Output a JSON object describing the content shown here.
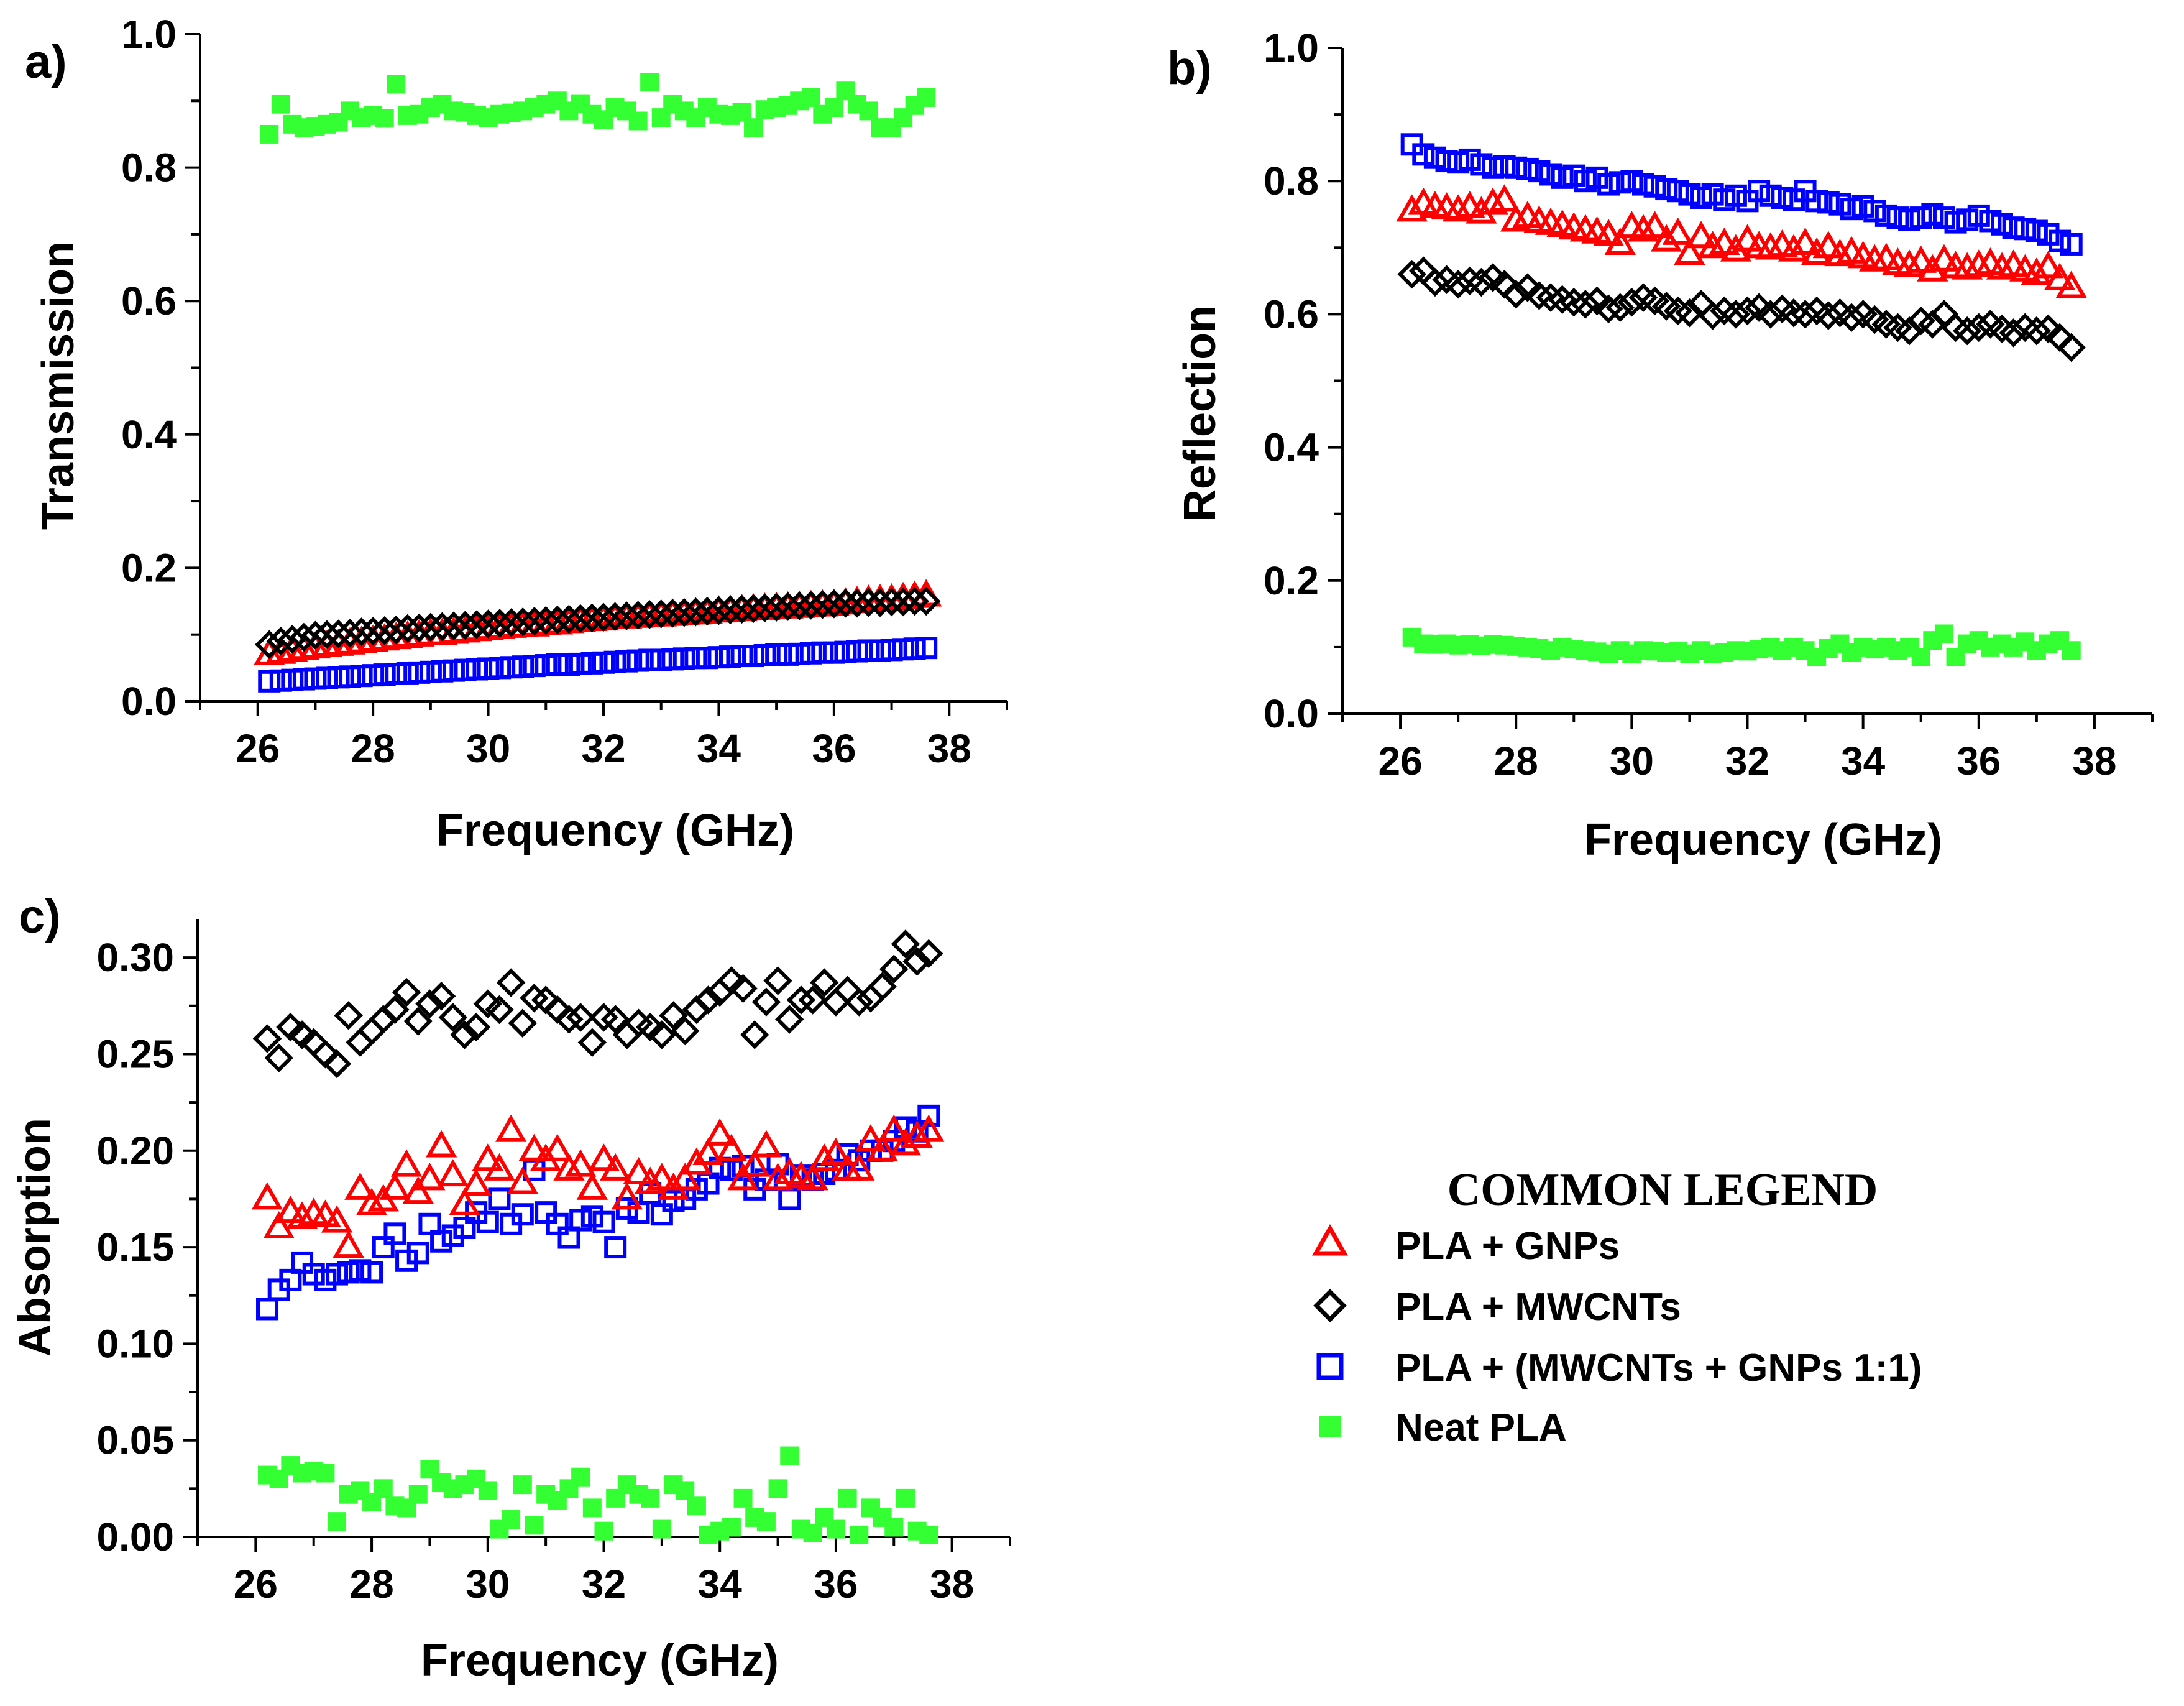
{
  "legend": {
    "title": "COMMON LEGEND",
    "entries": [
      {
        "name": "PLA + GNPs",
        "marker": "triangle-open",
        "color": "#ff0000"
      },
      {
        "name": "PLA + MWCNTs",
        "marker": "diamond-open",
        "color": "#000000"
      },
      {
        "name": "PLA + (MWCNTs + GNPs 1:1)",
        "marker": "square-open",
        "color": "#0000ff"
      },
      {
        "name": "Neat PLA",
        "marker": "square-filled",
        "color": "#33ff33"
      }
    ]
  },
  "chart_data": [
    {
      "type": "scatter",
      "panel_label": "a)",
      "title": "",
      "xlabel": "Frequency (GHz)",
      "ylabel": "Transmission",
      "xlim": [
        25,
        39
      ],
      "ylim": [
        0,
        1.0
      ],
      "xticks": [
        "26",
        "28",
        "30",
        "32",
        "34",
        "36",
        "38"
      ],
      "yticks": [
        "0.0",
        "0.2",
        "0.4",
        "0.6",
        "0.8",
        "1.0"
      ],
      "x": [
        26.2,
        26.4,
        26.6,
        26.8,
        27.0,
        27.2,
        27.4,
        27.6,
        27.8,
        28.0,
        28.2,
        28.4,
        28.6,
        28.8,
        29.0,
        29.2,
        29.4,
        29.6,
        29.8,
        30.0,
        30.2,
        30.4,
        30.6,
        30.8,
        31.0,
        31.2,
        31.4,
        31.6,
        31.8,
        32.0,
        32.2,
        32.4,
        32.6,
        32.8,
        33.0,
        33.2,
        33.4,
        33.6,
        33.8,
        34.0,
        34.2,
        34.4,
        34.6,
        34.8,
        35.0,
        35.2,
        35.4,
        35.6,
        35.8,
        36.0,
        36.2,
        36.4,
        36.6,
        36.8,
        37.0,
        37.2,
        37.4,
        37.6
      ],
      "series": [
        {
          "name": "PLA + GNPs",
          "values": [
            0.07,
            0.072,
            0.075,
            0.078,
            0.08,
            0.082,
            0.084,
            0.086,
            0.088,
            0.09,
            0.092,
            0.094,
            0.096,
            0.098,
            0.1,
            0.1,
            0.102,
            0.104,
            0.106,
            0.108,
            0.11,
            0.111,
            0.112,
            0.113,
            0.115,
            0.116,
            0.118,
            0.12,
            0.121,
            0.122,
            0.124,
            0.125,
            0.126,
            0.127,
            0.128,
            0.129,
            0.13,
            0.131,
            0.132,
            0.134,
            0.135,
            0.136,
            0.137,
            0.138,
            0.139,
            0.14,
            0.141,
            0.142,
            0.143,
            0.144,
            0.146,
            0.148,
            0.15,
            0.151,
            0.152,
            0.154,
            0.156,
            0.158
          ]
        },
        {
          "name": "PLA + MWCNTs",
          "values": [
            0.085,
            0.09,
            0.093,
            0.096,
            0.099,
            0.1,
            0.101,
            0.102,
            0.104,
            0.105,
            0.106,
            0.107,
            0.109,
            0.11,
            0.111,
            0.112,
            0.113,
            0.114,
            0.115,
            0.116,
            0.117,
            0.118,
            0.119,
            0.12,
            0.121,
            0.122,
            0.123,
            0.124,
            0.125,
            0.126,
            0.127,
            0.128,
            0.129,
            0.13,
            0.131,
            0.132,
            0.133,
            0.134,
            0.135,
            0.136,
            0.137,
            0.138,
            0.139,
            0.14,
            0.141,
            0.142,
            0.143,
            0.144,
            0.145,
            0.146,
            0.147,
            0.147,
            0.148,
            0.148,
            0.149,
            0.149,
            0.15,
            0.15
          ]
        },
        {
          "name": "PLA + (MWCNTs + GNPs 1:1)",
          "values": [
            0.03,
            0.031,
            0.032,
            0.033,
            0.034,
            0.035,
            0.036,
            0.037,
            0.038,
            0.039,
            0.04,
            0.041,
            0.042,
            0.043,
            0.044,
            0.045,
            0.046,
            0.047,
            0.048,
            0.049,
            0.05,
            0.051,
            0.052,
            0.053,
            0.054,
            0.055,
            0.055,
            0.056,
            0.057,
            0.058,
            0.059,
            0.06,
            0.061,
            0.062,
            0.062,
            0.063,
            0.064,
            0.065,
            0.065,
            0.066,
            0.067,
            0.068,
            0.068,
            0.069,
            0.07,
            0.07,
            0.071,
            0.072,
            0.073,
            0.073,
            0.074,
            0.075,
            0.076,
            0.076,
            0.077,
            0.078,
            0.079,
            0.08
          ]
        },
        {
          "name": "Neat PLA",
          "values": [
            0.85,
            0.895,
            0.865,
            0.86,
            0.862,
            0.865,
            0.868,
            0.885,
            0.875,
            0.878,
            0.874,
            0.925,
            0.878,
            0.88,
            0.89,
            0.895,
            0.885,
            0.883,
            0.878,
            0.875,
            0.88,
            0.882,
            0.885,
            0.89,
            0.895,
            0.9,
            0.885,
            0.896,
            0.88,
            0.872,
            0.89,
            0.885,
            0.87,
            0.928,
            0.875,
            0.895,
            0.885,
            0.875,
            0.89,
            0.88,
            0.878,
            0.883,
            0.86,
            0.887,
            0.89,
            0.893,
            0.9,
            0.905,
            0.88,
            0.89,
            0.915,
            0.895,
            0.885,
            0.86,
            0.86,
            0.875,
            0.893,
            0.905
          ]
        }
      ]
    },
    {
      "type": "scatter",
      "panel_label": "b)",
      "title": "",
      "xlabel": "Frequency (GHz)",
      "ylabel": "Reflection",
      "xlim": [
        25,
        39
      ],
      "ylim": [
        0,
        1.0
      ],
      "xticks": [
        "26",
        "28",
        "30",
        "32",
        "34",
        "36",
        "38"
      ],
      "yticks": [
        "0.0",
        "0.2",
        "0.4",
        "0.6",
        "0.8",
        "1.0"
      ],
      "x": [
        26.2,
        26.4,
        26.6,
        26.8,
        27.0,
        27.2,
        27.4,
        27.6,
        27.8,
        28.0,
        28.2,
        28.4,
        28.6,
        28.8,
        29.0,
        29.2,
        29.4,
        29.6,
        29.8,
        30.0,
        30.2,
        30.4,
        30.6,
        30.8,
        31.0,
        31.2,
        31.4,
        31.6,
        31.8,
        32.0,
        32.2,
        32.4,
        32.6,
        32.8,
        33.0,
        33.2,
        33.4,
        33.6,
        33.8,
        34.0,
        34.2,
        34.4,
        34.6,
        34.8,
        35.0,
        35.2,
        35.4,
        35.6,
        35.8,
        36.0,
        36.2,
        36.4,
        36.6,
        36.8,
        37.0,
        37.2,
        37.4,
        37.6
      ],
      "series": [
        {
          "name": "PLA + GNPs",
          "values": [
            0.755,
            0.765,
            0.76,
            0.758,
            0.755,
            0.76,
            0.752,
            0.765,
            0.77,
            0.74,
            0.745,
            0.738,
            0.735,
            0.732,
            0.728,
            0.725,
            0.722,
            0.718,
            0.705,
            0.73,
            0.725,
            0.73,
            0.71,
            0.72,
            0.69,
            0.715,
            0.7,
            0.705,
            0.695,
            0.71,
            0.7,
            0.698,
            0.702,
            0.695,
            0.705,
            0.69,
            0.7,
            0.688,
            0.692,
            0.685,
            0.68,
            0.682,
            0.675,
            0.672,
            0.678,
            0.665,
            0.68,
            0.67,
            0.668,
            0.672,
            0.675,
            0.668,
            0.672,
            0.665,
            0.66,
            0.67,
            0.652,
            0.64
          ]
        },
        {
          "name": "PLA + MWCNTs",
          "values": [
            0.66,
            0.665,
            0.648,
            0.652,
            0.645,
            0.65,
            0.648,
            0.655,
            0.645,
            0.63,
            0.64,
            0.628,
            0.625,
            0.622,
            0.618,
            0.615,
            0.62,
            0.608,
            0.61,
            0.618,
            0.625,
            0.62,
            0.612,
            0.605,
            0.602,
            0.615,
            0.598,
            0.605,
            0.6,
            0.605,
            0.61,
            0.6,
            0.608,
            0.602,
            0.6,
            0.605,
            0.598,
            0.602,
            0.595,
            0.6,
            0.592,
            0.585,
            0.58,
            0.575,
            0.59,
            0.585,
            0.6,
            0.58,
            0.575,
            0.58,
            0.585,
            0.578,
            0.572,
            0.58,
            0.575,
            0.578,
            0.565,
            0.55
          ]
        },
        {
          "name": "PLA + (MWCNTs + GNPs 1:1)",
          "values": [
            0.855,
            0.84,
            0.835,
            0.83,
            0.828,
            0.832,
            0.825,
            0.82,
            0.822,
            0.82,
            0.818,
            0.815,
            0.81,
            0.805,
            0.808,
            0.8,
            0.805,
            0.795,
            0.798,
            0.8,
            0.795,
            0.792,
            0.788,
            0.785,
            0.78,
            0.775,
            0.78,
            0.772,
            0.778,
            0.77,
            0.785,
            0.778,
            0.775,
            0.772,
            0.785,
            0.77,
            0.768,
            0.765,
            0.758,
            0.762,
            0.755,
            0.748,
            0.745,
            0.742,
            0.745,
            0.75,
            0.745,
            0.738,
            0.742,
            0.748,
            0.74,
            0.735,
            0.73,
            0.728,
            0.725,
            0.72,
            0.71,
            0.705
          ]
        },
        {
          "name": "Neat PLA",
          "values": [
            0.115,
            0.105,
            0.104,
            0.105,
            0.103,
            0.104,
            0.102,
            0.104,
            0.103,
            0.101,
            0.1,
            0.098,
            0.095,
            0.1,
            0.097,
            0.095,
            0.093,
            0.09,
            0.095,
            0.09,
            0.095,
            0.094,
            0.092,
            0.094,
            0.09,
            0.095,
            0.09,
            0.092,
            0.095,
            0.094,
            0.097,
            0.1,
            0.095,
            0.1,
            0.095,
            0.085,
            0.098,
            0.105,
            0.092,
            0.1,
            0.097,
            0.1,
            0.095,
            0.1,
            0.085,
            0.11,
            0.12,
            0.085,
            0.105,
            0.11,
            0.1,
            0.105,
            0.1,
            0.108,
            0.095,
            0.105,
            0.11,
            0.095
          ]
        }
      ]
    },
    {
      "type": "scatter",
      "panel_label": "c)",
      "title": "",
      "xlabel": "Frequency (GHz)",
      "ylabel": "Absorption",
      "xlim": [
        25,
        39
      ],
      "ylim": [
        0,
        0.32
      ],
      "xticks": [
        "26",
        "28",
        "30",
        "32",
        "34",
        "36",
        "38"
      ],
      "yticks": [
        "0.00",
        "0.05",
        "0.10",
        "0.15",
        "0.20",
        "0.25",
        "0.30"
      ],
      "x": [
        26.2,
        26.4,
        26.6,
        26.8,
        27.0,
        27.2,
        27.4,
        27.6,
        27.8,
        28.0,
        28.2,
        28.4,
        28.6,
        28.8,
        29.0,
        29.2,
        29.4,
        29.6,
        29.8,
        30.0,
        30.2,
        30.4,
        30.6,
        30.8,
        31.0,
        31.2,
        31.4,
        31.6,
        31.8,
        32.0,
        32.2,
        32.4,
        32.6,
        32.8,
        33.0,
        33.2,
        33.4,
        33.6,
        33.8,
        34.0,
        34.2,
        34.4,
        34.6,
        34.8,
        35.0,
        35.2,
        35.4,
        35.6,
        35.8,
        36.0,
        36.2,
        36.4,
        36.6,
        36.8,
        37.0,
        37.2,
        37.4,
        37.6
      ],
      "series": [
        {
          "name": "PLA + GNPs",
          "values": [
            0.175,
            0.16,
            0.168,
            0.165,
            0.167,
            0.166,
            0.163,
            0.15,
            0.18,
            0.172,
            0.174,
            0.18,
            0.192,
            0.178,
            0.185,
            0.202,
            0.187,
            0.172,
            0.182,
            0.195,
            0.19,
            0.21,
            0.183,
            0.2,
            0.195,
            0.2,
            0.19,
            0.192,
            0.18,
            0.195,
            0.19,
            0.175,
            0.188,
            0.183,
            0.185,
            0.18,
            0.185,
            0.193,
            0.198,
            0.208,
            0.2,
            0.185,
            0.192,
            0.202,
            0.185,
            0.188,
            0.186,
            0.185,
            0.195,
            0.198,
            0.19,
            0.19,
            0.205,
            0.2,
            0.21,
            0.203,
            0.207,
            0.21
          ]
        },
        {
          "name": "PLA + MWCNTs",
          "values": [
            0.258,
            0.248,
            0.264,
            0.26,
            0.256,
            0.25,
            0.245,
            0.27,
            0.256,
            0.262,
            0.268,
            0.273,
            0.282,
            0.267,
            0.276,
            0.28,
            0.269,
            0.26,
            0.264,
            0.276,
            0.273,
            0.287,
            0.266,
            0.279,
            0.278,
            0.273,
            0.268,
            0.269,
            0.256,
            0.269,
            0.268,
            0.26,
            0.266,
            0.264,
            0.26,
            0.27,
            0.262,
            0.273,
            0.278,
            0.282,
            0.288,
            0.284,
            0.26,
            0.277,
            0.288,
            0.268,
            0.278,
            0.278,
            0.287,
            0.277,
            0.283,
            0.277,
            0.279,
            0.285,
            0.294,
            0.307,
            0.298,
            0.302
          ]
        },
        {
          "name": "PLA + (MWCNTs + GNPs 1:1)",
          "values": [
            0.118,
            0.128,
            0.133,
            0.142,
            0.136,
            0.133,
            0.136,
            0.137,
            0.138,
            0.137,
            0.15,
            0.157,
            0.143,
            0.147,
            0.162,
            0.153,
            0.156,
            0.16,
            0.168,
            0.163,
            0.175,
            0.162,
            0.167,
            0.19,
            0.168,
            0.162,
            0.155,
            0.164,
            0.166,
            0.163,
            0.15,
            0.17,
            0.168,
            0.178,
            0.167,
            0.174,
            0.175,
            0.18,
            0.183,
            0.191,
            0.19,
            0.192,
            0.18,
            0.185,
            0.193,
            0.175,
            0.187,
            0.185,
            0.188,
            0.19,
            0.198,
            0.195,
            0.2,
            0.2,
            0.205,
            0.212,
            0.21,
            0.218
          ]
        },
        {
          "name": "Neat PLA",
          "values": [
            0.032,
            0.03,
            0.037,
            0.033,
            0.034,
            0.033,
            0.008,
            0.022,
            0.024,
            0.018,
            0.025,
            0.016,
            0.015,
            0.022,
            0.035,
            0.028,
            0.025,
            0.027,
            0.03,
            0.024,
            0.004,
            0.009,
            0.027,
            0.006,
            0.022,
            0.019,
            0.025,
            0.031,
            0.015,
            0.003,
            0.02,
            0.027,
            0.022,
            0.02,
            0.004,
            0.027,
            0.024,
            0.016,
            0.001,
            0.003,
            0.005,
            0.02,
            0.01,
            0.008,
            0.025,
            0.042,
            0.004,
            0.002,
            0.01,
            0.004,
            0.02,
            0.001,
            0.015,
            0.01,
            0.005,
            0.02,
            0.003,
            0.001
          ]
        }
      ]
    }
  ]
}
